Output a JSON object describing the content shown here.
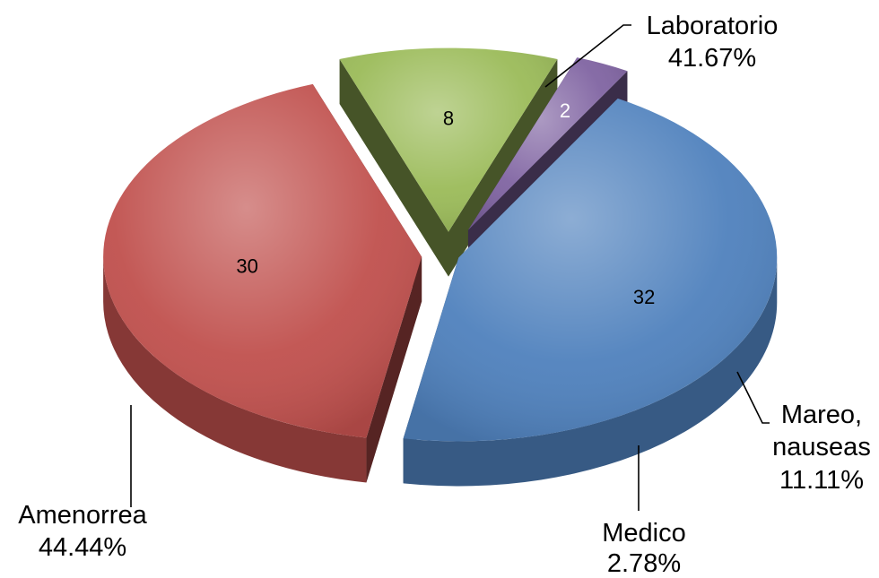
{
  "chart_data": {
    "type": "pie",
    "style": "3d-exploded",
    "total": 72,
    "slices": [
      {
        "name": "Laboratorio",
        "value": 30,
        "percent_label": "41.67%",
        "color": "#c0504d",
        "value_text_color": "#000000"
      },
      {
        "name": "Mareo, nauseas",
        "value": 8,
        "percent_label": "11.11%",
        "color": "#9bbb59",
        "value_text_color": "#000000"
      },
      {
        "name": "Medico",
        "value": 2,
        "percent_label": "2.78%",
        "color": "#8064a2",
        "value_text_color": "#ffffff"
      },
      {
        "name": "Amenorrea",
        "value": 32,
        "percent_label": "44.44%",
        "color": "#4f81bd",
        "value_text_color": "#000000"
      }
    ],
    "labels": [
      {
        "lines": [
          "Laboratorio"
        ],
        "percent": "41.67%"
      },
      {
        "lines": [
          "Mareo,",
          "nauseas"
        ],
        "percent": "11.11%"
      },
      {
        "lines": [
          "Medico"
        ],
        "percent": "2.78%"
      },
      {
        "lines": [
          "Amenorrea"
        ],
        "percent": "44.44%"
      }
    ],
    "legend": "none"
  }
}
